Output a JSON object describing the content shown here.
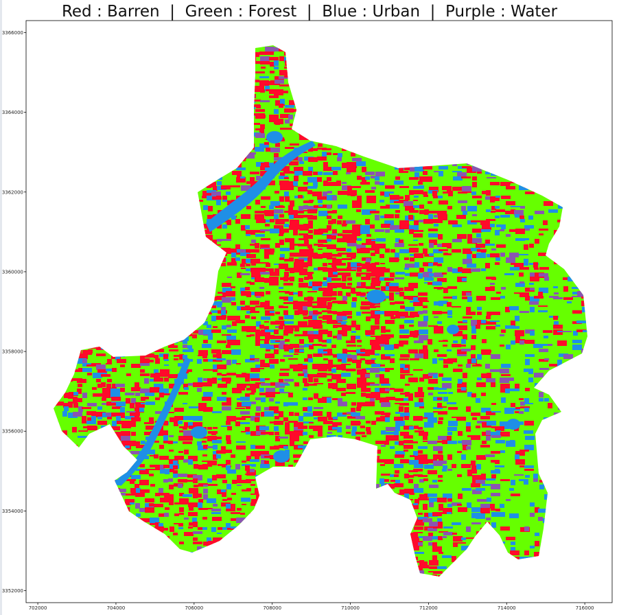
{
  "title": "Red : Barren  |  Green : Forest  |  Blue : Urban  |  Purple : Water",
  "chart_data": {
    "type": "heatmap",
    "title": "Red : Barren  |  Green : Forest  |  Blue : Urban  |  Purple : Water",
    "x_ticks": [
      "702000",
      "704000",
      "706000",
      "708000",
      "710000",
      "712000",
      "714000",
      "716000"
    ],
    "y_ticks": [
      "3366000",
      "3364000",
      "3362000",
      "3360000",
      "3358000",
      "3356000",
      "3354000",
      "3352000"
    ],
    "xlim": [
      701700,
      716700
    ],
    "ylim": [
      3351700,
      3366300
    ],
    "classes": [
      {
        "name": "Barren",
        "color": "#ff0a2a"
      },
      {
        "name": "Forest",
        "color": "#66ff00"
      },
      {
        "name": "Urban",
        "color": "#1f8fe6"
      },
      {
        "name": "Water",
        "color": "#8a55b0"
      }
    ],
    "grid": false
  }
}
